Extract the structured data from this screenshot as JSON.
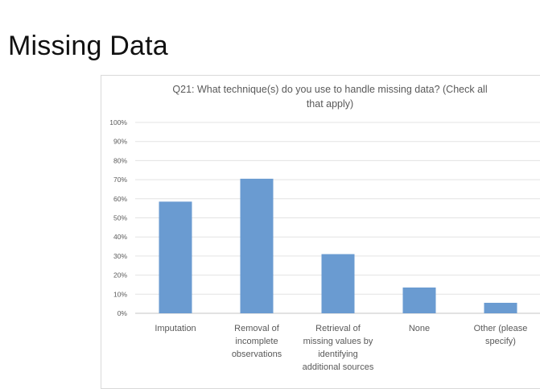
{
  "slide": {
    "title": "Missing Data"
  },
  "chart_data": {
    "type": "bar",
    "title": "Q21: What technique(s) do you use to handle missing data? (Check all that apply)",
    "title_lines": [
      "Q21: What technique(s) do you use to handle missing data? (Check all",
      "that apply)"
    ],
    "categories": [
      "Imputation",
      "Removal of incomplete observations",
      "Retrieval of missing values by identifying additional sources",
      "None",
      "Other (please specify)"
    ],
    "category_lines": [
      [
        "Imputation"
      ],
      [
        "Removal of",
        "incomplete",
        "observations"
      ],
      [
        "Retrieval of",
        "missing values by",
        "identifying",
        "additional sources"
      ],
      [
        "None"
      ],
      [
        "Other (please",
        "specify)"
      ]
    ],
    "values": [
      0.585,
      0.705,
      0.31,
      0.135,
      0.055
    ],
    "y_ticks": [
      "0%",
      "10%",
      "20%",
      "30%",
      "40%",
      "50%",
      "60%",
      "70%",
      "80%",
      "90%",
      "100%"
    ],
    "ylim": [
      0,
      1
    ],
    "grid": true,
    "bar_color": "#6a9bd1",
    "grid_color": "#e3e3e3"
  }
}
